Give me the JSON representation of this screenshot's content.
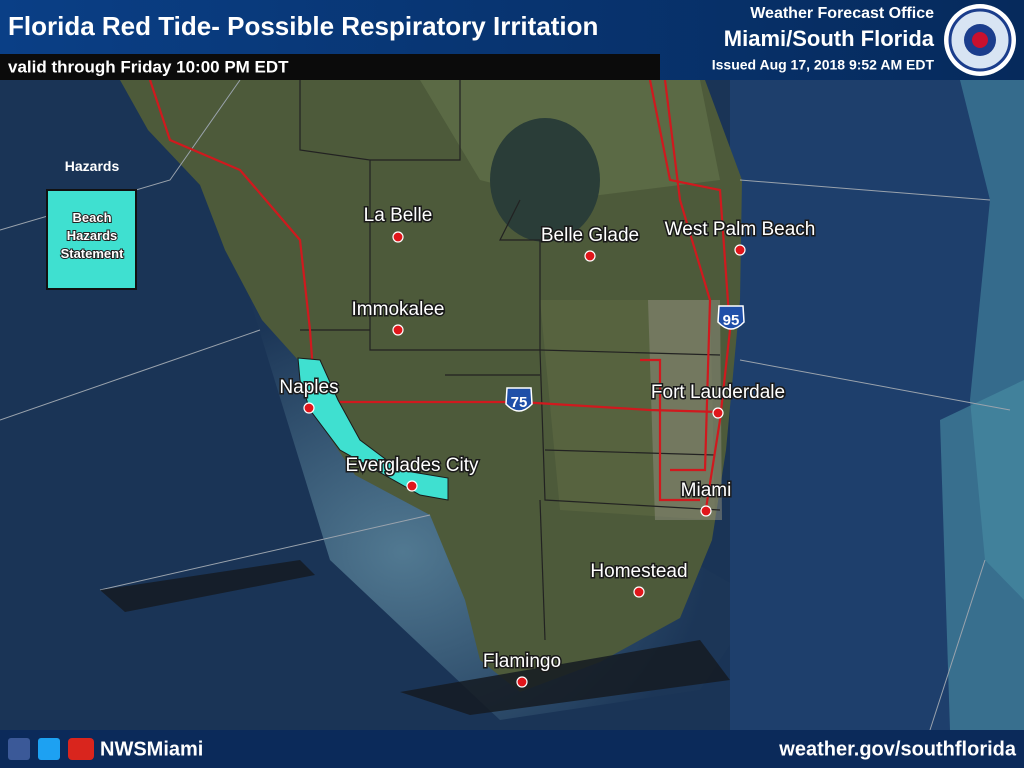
{
  "header": {
    "title": "Florida Red Tide- Possible Respiratory Irritation",
    "subtitle": "valid through Friday 10:00 PM EDT",
    "office": "Weather Forecast Office",
    "region": "Miami/South Florida",
    "issued": "Issued Aug 17, 2018 9:52 AM EDT"
  },
  "legend": {
    "heading": "Hazards",
    "items": [
      "Beach Hazards Statement"
    ]
  },
  "cities": [
    "La Belle",
    "Belle Glade",
    "West Palm Beach",
    "Immokalee",
    "Naples",
    "Fort Lauderdale",
    "Everglades City",
    "Miami",
    "Homestead",
    "Flamingo"
  ],
  "highways": [
    "95",
    "75"
  ],
  "footer": {
    "handle": "NWSMiami",
    "website": "weather.gov/southflorida"
  }
}
